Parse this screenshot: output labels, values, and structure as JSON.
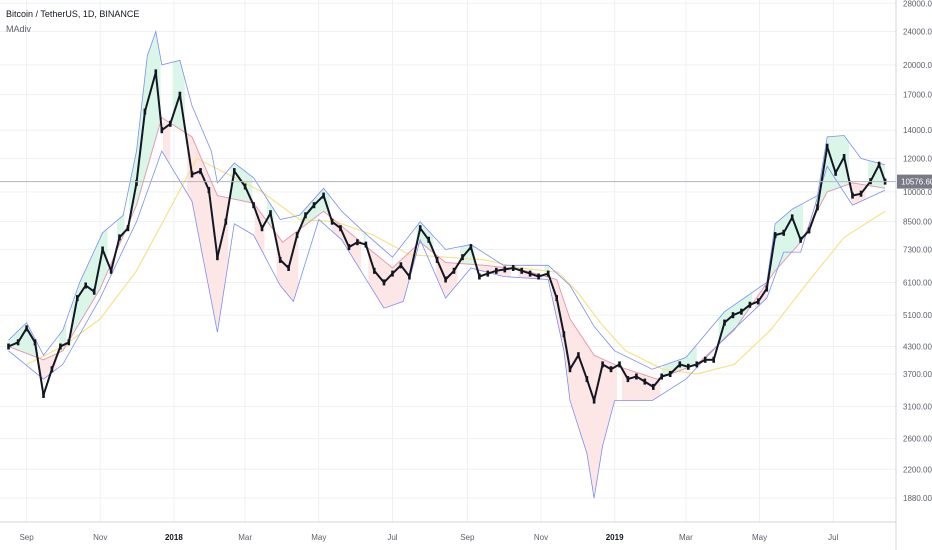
{
  "header": {
    "symbol_title": "Bitcoin / TetherUS, 1D, BINANCE",
    "indicator_name": "MAdiv"
  },
  "colors": {
    "candle": "#131722",
    "upper_band": "#7b8ff0",
    "mid_band": "#e79bb0",
    "slow_ma": "#f5e38a",
    "fill_above": "#d6f5e6",
    "fill_below": "#fde3e3",
    "grid": "#eef0f3",
    "price_line": "#b2b5be",
    "price_tag": "#787b86"
  },
  "chart_data": {
    "type": "line",
    "title": "Bitcoin / TetherUS, 1D, BINANCE",
    "indicator": "MAdiv",
    "y_scale": "log",
    "ylim": [
      1650,
      28500
    ],
    "grid": true,
    "current_price": 10576.6,
    "current_price_label": "10576.60",
    "y_ticks": [
      {
        "value": 28000,
        "label": "28000.00"
      },
      {
        "value": 24000,
        "label": "24000.00"
      },
      {
        "value": 20000,
        "label": "20000.00"
      },
      {
        "value": 17000,
        "label": "17000.00"
      },
      {
        "value": 14000,
        "label": "14000.00"
      },
      {
        "value": 12000,
        "label": "12000.00"
      },
      {
        "value": 10000,
        "label": "10000.00"
      },
      {
        "value": 8500,
        "label": "8500.00"
      },
      {
        "value": 7300,
        "label": "7300.00"
      },
      {
        "value": 6100,
        "label": "6100.00"
      },
      {
        "value": 5100,
        "label": "5100.00"
      },
      {
        "value": 4300,
        "label": "4300.00"
      },
      {
        "value": 3700,
        "label": "3700.00"
      },
      {
        "value": 3100,
        "label": "3100.00"
      },
      {
        "value": 2600,
        "label": "2600.00"
      },
      {
        "value": 2200,
        "label": "2200.00"
      },
      {
        "value": 1880,
        "label": "1880.00"
      }
    ],
    "x_ticks": [
      {
        "date": "2017-09-01",
        "label": "Sep",
        "bold": false
      },
      {
        "date": "2017-11-01",
        "label": "Nov",
        "bold": false
      },
      {
        "date": "2018-01-01",
        "label": "2018",
        "bold": true
      },
      {
        "date": "2018-03-01",
        "label": "Mar",
        "bold": false
      },
      {
        "date": "2018-05-01",
        "label": "May",
        "bold": false
      },
      {
        "date": "2018-07-01",
        "label": "Jul",
        "bold": false
      },
      {
        "date": "2018-09-01",
        "label": "Sep",
        "bold": false
      },
      {
        "date": "2018-11-01",
        "label": "Nov",
        "bold": false
      },
      {
        "date": "2019-01-01",
        "label": "2019",
        "bold": true
      },
      {
        "date": "2019-03-01",
        "label": "Mar",
        "bold": false
      },
      {
        "date": "2019-05-01",
        "label": "May",
        "bold": false
      },
      {
        "date": "2019-07-01",
        "label": "Jul",
        "bold": false
      }
    ],
    "xlim": [
      "2017-08-10",
      "2019-08-22"
    ],
    "price_points": [
      [
        "2017-08-17",
        4300
      ],
      [
        "2017-08-25",
        4400
      ],
      [
        "2017-09-01",
        4750
      ],
      [
        "2017-09-08",
        4400
      ],
      [
        "2017-09-15",
        3300
      ],
      [
        "2017-09-22",
        3800
      ],
      [
        "2017-09-29",
        4300
      ],
      [
        "2017-10-06",
        4400
      ],
      [
        "2017-10-13",
        5600
      ],
      [
        "2017-10-20",
        6000
      ],
      [
        "2017-10-27",
        5800
      ],
      [
        "2017-11-03",
        7300
      ],
      [
        "2017-11-10",
        6500
      ],
      [
        "2017-11-17",
        7800
      ],
      [
        "2017-11-24",
        8200
      ],
      [
        "2017-12-01",
        10500
      ],
      [
        "2017-12-08",
        15500
      ],
      [
        "2017-12-17",
        19200
      ],
      [
        "2017-12-22",
        14000
      ],
      [
        "2017-12-29",
        14500
      ],
      [
        "2018-01-06",
        17000
      ],
      [
        "2018-01-16",
        11000
      ],
      [
        "2018-01-23",
        11200
      ],
      [
        "2018-01-30",
        10100
      ],
      [
        "2018-02-06",
        7000
      ],
      [
        "2018-02-13",
        8500
      ],
      [
        "2018-02-20",
        11200
      ],
      [
        "2018-03-01",
        10300
      ],
      [
        "2018-03-08",
        9300
      ],
      [
        "2018-03-15",
        8200
      ],
      [
        "2018-03-22",
        8900
      ],
      [
        "2018-03-30",
        6900
      ],
      [
        "2018-04-06",
        6600
      ],
      [
        "2018-04-13",
        7900
      ],
      [
        "2018-04-20",
        8800
      ],
      [
        "2018-04-27",
        9300
      ],
      [
        "2018-05-05",
        9800
      ],
      [
        "2018-05-12",
        8500
      ],
      [
        "2018-05-19",
        8200
      ],
      [
        "2018-05-26",
        7400
      ],
      [
        "2018-06-02",
        7600
      ],
      [
        "2018-06-09",
        7500
      ],
      [
        "2018-06-16",
        6500
      ],
      [
        "2018-06-24",
        6100
      ],
      [
        "2018-07-01",
        6400
      ],
      [
        "2018-07-08",
        6700
      ],
      [
        "2018-07-15",
        6300
      ],
      [
        "2018-07-24",
        8200
      ],
      [
        "2018-07-31",
        7700
      ],
      [
        "2018-08-07",
        6900
      ],
      [
        "2018-08-14",
        6200
      ],
      [
        "2018-08-21",
        6500
      ],
      [
        "2018-08-28",
        7000
      ],
      [
        "2018-09-04",
        7400
      ],
      [
        "2018-09-11",
        6300
      ],
      [
        "2018-09-18",
        6400
      ],
      [
        "2018-09-25",
        6500
      ],
      [
        "2018-10-02",
        6550
      ],
      [
        "2018-10-09",
        6600
      ],
      [
        "2018-10-16",
        6500
      ],
      [
        "2018-10-23",
        6400
      ],
      [
        "2018-10-30",
        6300
      ],
      [
        "2018-11-07",
        6400
      ],
      [
        "2018-11-14",
        5600
      ],
      [
        "2018-11-20",
        4600
      ],
      [
        "2018-11-25",
        3800
      ],
      [
        "2018-12-02",
        4100
      ],
      [
        "2018-12-09",
        3600
      ],
      [
        "2018-12-15",
        3200
      ],
      [
        "2018-12-22",
        3900
      ],
      [
        "2018-12-29",
        3800
      ],
      [
        "2019-01-05",
        3900
      ],
      [
        "2019-01-12",
        3600
      ],
      [
        "2019-01-19",
        3650
      ],
      [
        "2019-01-26",
        3550
      ],
      [
        "2019-02-02",
        3450
      ],
      [
        "2019-02-09",
        3650
      ],
      [
        "2019-02-16",
        3700
      ],
      [
        "2019-02-24",
        3900
      ],
      [
        "2019-03-03",
        3850
      ],
      [
        "2019-03-10",
        3900
      ],
      [
        "2019-03-17",
        4000
      ],
      [
        "2019-03-24",
        4000
      ],
      [
        "2019-04-02",
        4900
      ],
      [
        "2019-04-09",
        5100
      ],
      [
        "2019-04-16",
        5200
      ],
      [
        "2019-04-23",
        5400
      ],
      [
        "2019-04-30",
        5500
      ],
      [
        "2019-05-07",
        5900
      ],
      [
        "2019-05-14",
        7900
      ],
      [
        "2019-05-21",
        8000
      ],
      [
        "2019-05-28",
        8700
      ],
      [
        "2019-06-04",
        7700
      ],
      [
        "2019-06-11",
        8100
      ],
      [
        "2019-06-18",
        9200
      ],
      [
        "2019-06-26",
        12800
      ],
      [
        "2019-07-03",
        11100
      ],
      [
        "2019-07-10",
        12100
      ],
      [
        "2019-07-17",
        9800
      ],
      [
        "2019-07-24",
        9900
      ],
      [
        "2019-08-01",
        10600
      ],
      [
        "2019-08-08",
        11600
      ],
      [
        "2019-08-13",
        10576.6
      ]
    ],
    "series": [
      {
        "key": "upper_band",
        "points": [
          [
            "2017-08-17",
            4450
          ],
          [
            "2017-09-01",
            4900
          ],
          [
            "2017-09-15",
            4100
          ],
          [
            "2017-10-01",
            4700
          ],
          [
            "2017-10-15",
            6100
          ],
          [
            "2017-11-03",
            8000
          ],
          [
            "2017-11-20",
            8800
          ],
          [
            "2017-12-01",
            12500
          ],
          [
            "2017-12-10",
            21000
          ],
          [
            "2017-12-17",
            24000
          ],
          [
            "2017-12-22",
            20000
          ],
          [
            "2018-01-06",
            20500
          ],
          [
            "2018-01-16",
            16000
          ],
          [
            "2018-02-01",
            12500
          ],
          [
            "2018-02-06",
            10500
          ],
          [
            "2018-02-20",
            11700
          ],
          [
            "2018-03-08",
            10800
          ],
          [
            "2018-03-30",
            8600
          ],
          [
            "2018-04-15",
            8800
          ],
          [
            "2018-05-05",
            10200
          ],
          [
            "2018-05-20",
            9000
          ],
          [
            "2018-06-10",
            7900
          ],
          [
            "2018-07-01",
            7000
          ],
          [
            "2018-07-24",
            8500
          ],
          [
            "2018-08-14",
            7300
          ],
          [
            "2018-09-04",
            7500
          ],
          [
            "2018-10-01",
            6700
          ],
          [
            "2018-11-07",
            6700
          ],
          [
            "2018-11-25",
            6000
          ],
          [
            "2018-12-15",
            4800
          ],
          [
            "2019-01-01",
            4200
          ],
          [
            "2019-02-01",
            3800
          ],
          [
            "2019-03-01",
            4050
          ],
          [
            "2019-04-02",
            5200
          ],
          [
            "2019-05-07",
            6100
          ],
          [
            "2019-05-14",
            8400
          ],
          [
            "2019-05-28",
            9100
          ],
          [
            "2019-06-18",
            9800
          ],
          [
            "2019-06-26",
            13500
          ],
          [
            "2019-07-10",
            13600
          ],
          [
            "2019-07-24",
            12000
          ],
          [
            "2019-08-13",
            11600
          ]
        ]
      },
      {
        "key": "lower_band",
        "points": [
          [
            "2017-08-17",
            4200
          ],
          [
            "2017-09-15",
            3600
          ],
          [
            "2017-10-01",
            3900
          ],
          [
            "2017-11-01",
            5600
          ],
          [
            "2017-12-01",
            8500
          ],
          [
            "2017-12-22",
            12500
          ],
          [
            "2018-01-16",
            9500
          ],
          [
            "2018-02-06",
            4650
          ],
          [
            "2018-02-20",
            8400
          ],
          [
            "2018-03-08",
            7900
          ],
          [
            "2018-03-30",
            6000
          ],
          [
            "2018-04-10",
            5500
          ],
          [
            "2018-05-01",
            8600
          ],
          [
            "2018-05-20",
            7700
          ],
          [
            "2018-06-24",
            5300
          ],
          [
            "2018-07-10",
            5500
          ],
          [
            "2018-07-24",
            7700
          ],
          [
            "2018-08-14",
            5600
          ],
          [
            "2018-09-04",
            6600
          ],
          [
            "2018-10-01",
            6300
          ],
          [
            "2018-11-07",
            6200
          ],
          [
            "2018-11-20",
            4200
          ],
          [
            "2018-11-25",
            3200
          ],
          [
            "2018-12-09",
            2400
          ],
          [
            "2018-12-15",
            1880
          ],
          [
            "2018-12-22",
            2500
          ],
          [
            "2019-01-01",
            3200
          ],
          [
            "2019-02-01",
            3200
          ],
          [
            "2019-03-01",
            3600
          ],
          [
            "2019-04-02",
            4500
          ],
          [
            "2019-05-07",
            5600
          ],
          [
            "2019-05-21",
            7200
          ],
          [
            "2019-06-04",
            7200
          ],
          [
            "2019-06-26",
            11500
          ],
          [
            "2019-07-17",
            9300
          ],
          [
            "2019-08-13",
            10100
          ]
        ]
      },
      {
        "key": "mid_band",
        "points": [
          [
            "2017-08-17",
            4300
          ],
          [
            "2017-09-15",
            4000
          ],
          [
            "2017-10-01",
            4200
          ],
          [
            "2017-11-01",
            5900
          ],
          [
            "2017-12-01",
            9300
          ],
          [
            "2017-12-22",
            15000
          ],
          [
            "2018-01-16",
            13500
          ],
          [
            "2018-02-06",
            9800
          ],
          [
            "2018-03-08",
            9400
          ],
          [
            "2018-04-01",
            7600
          ],
          [
            "2018-05-05",
            9000
          ],
          [
            "2018-06-10",
            7400
          ],
          [
            "2018-07-01",
            6600
          ],
          [
            "2018-07-24",
            7600
          ],
          [
            "2018-08-14",
            6800
          ],
          [
            "2018-09-15",
            6700
          ],
          [
            "2018-10-15",
            6550
          ],
          [
            "2018-11-14",
            6200
          ],
          [
            "2018-11-25",
            5000
          ],
          [
            "2018-12-15",
            4100
          ],
          [
            "2019-01-05",
            3850
          ],
          [
            "2019-02-05",
            3600
          ],
          [
            "2019-03-10",
            3900
          ],
          [
            "2019-04-10",
            4700
          ],
          [
            "2019-05-14",
            6500
          ],
          [
            "2019-06-04",
            7600
          ],
          [
            "2019-06-26",
            10000
          ],
          [
            "2019-07-17",
            10500
          ],
          [
            "2019-08-13",
            10200
          ]
        ]
      },
      {
        "key": "slow_ma",
        "points": [
          [
            "2017-09-01",
            3900
          ],
          [
            "2017-10-01",
            4300
          ],
          [
            "2017-11-01",
            5000
          ],
          [
            "2017-12-01",
            6500
          ],
          [
            "2018-01-01",
            9500
          ],
          [
            "2018-01-20",
            12000
          ],
          [
            "2018-02-15",
            11000
          ],
          [
            "2018-03-15",
            10000
          ],
          [
            "2018-04-15",
            8600
          ],
          [
            "2018-05-15",
            8500
          ],
          [
            "2018-06-15",
            7900
          ],
          [
            "2018-07-15",
            7100
          ],
          [
            "2018-08-15",
            7000
          ],
          [
            "2018-09-15",
            6900
          ],
          [
            "2018-10-15",
            6600
          ],
          [
            "2018-11-15",
            6450
          ],
          [
            "2018-12-01",
            5800
          ],
          [
            "2018-12-20",
            4900
          ],
          [
            "2019-01-10",
            4200
          ],
          [
            "2019-02-10",
            3800
          ],
          [
            "2019-03-10",
            3700
          ],
          [
            "2019-04-10",
            3900
          ],
          [
            "2019-05-10",
            4700
          ],
          [
            "2019-06-10",
            6100
          ],
          [
            "2019-07-10",
            7800
          ],
          [
            "2019-08-13",
            9000
          ]
        ]
      }
    ]
  }
}
